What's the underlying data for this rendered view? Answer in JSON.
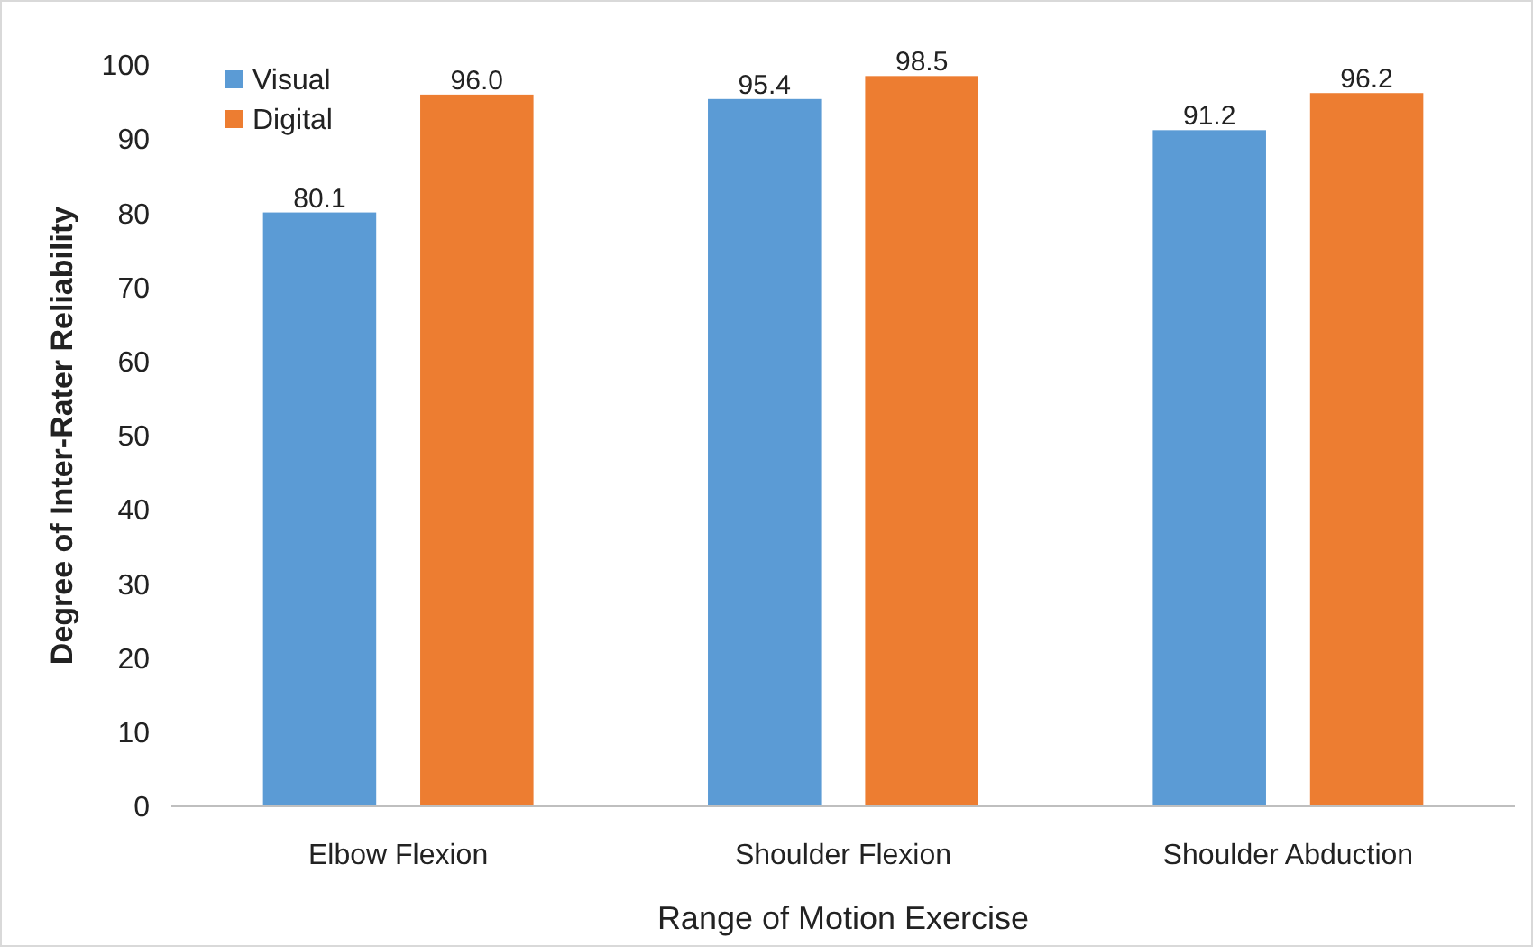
{
  "chart_data": {
    "type": "bar",
    "xlabel": "Range of Motion Exercise",
    "ylabel": "Degree of Inter-Rater Reliability",
    "categories": [
      "Elbow Flexion",
      "Shoulder Flexion",
      "Shoulder Abduction"
    ],
    "series": [
      {
        "name": "Visual",
        "color": "#5b9bd5",
        "values": [
          80.1,
          95.4,
          91.2
        ]
      },
      {
        "name": "Digital",
        "color": "#ed7d31",
        "values": [
          96.0,
          98.5,
          96.2
        ]
      }
    ],
    "value_labels": [
      [
        "80.1",
        "95.4",
        "91.2"
      ],
      [
        "96.0",
        "98.5",
        "96.2"
      ]
    ],
    "ylim": [
      0,
      100
    ],
    "yticks": [
      0,
      10,
      20,
      30,
      40,
      50,
      60,
      70,
      80,
      90,
      100
    ],
    "grid": false,
    "legend": "top left"
  }
}
